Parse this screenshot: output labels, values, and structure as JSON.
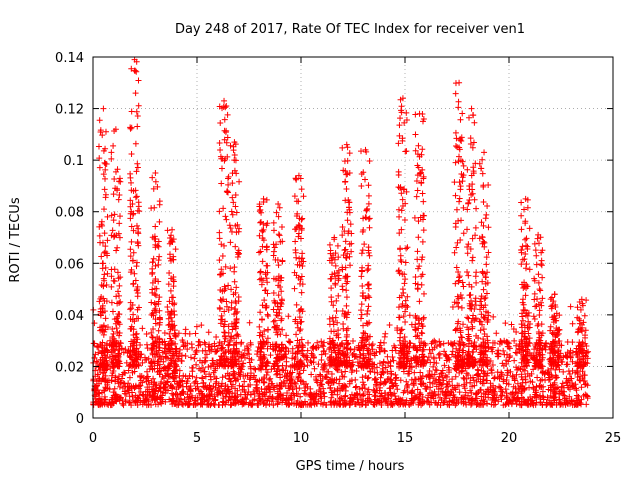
{
  "chart_data": {
    "type": "scatter",
    "title": "Day 248 of 2017, Rate Of TEC Index for receiver ven1",
    "xlabel": "GPS time / hours",
    "ylabel": "ROTI / TECUs",
    "xlim": [
      0,
      25
    ],
    "ylim": [
      0,
      0.14
    ],
    "xticks": [
      "0",
      "5",
      "10",
      "15",
      "20",
      "25"
    ],
    "yticks": [
      "0",
      "0.02",
      "0.04",
      "0.06",
      "0.08",
      "0.1",
      "0.12",
      "0.14"
    ],
    "grid": true,
    "marker": "plus",
    "color": "#ff0000",
    "data_extent_hours": [
      0,
      23.8
    ],
    "baseline_range": [
      0.005,
      0.03
    ],
    "bursts": [
      {
        "x": 0.5,
        "peak": 0.12
      },
      {
        "x": 1.1,
        "peak": 0.112
      },
      {
        "x": 2.0,
        "peak": 0.139
      },
      {
        "x": 3.0,
        "peak": 0.095
      },
      {
        "x": 3.8,
        "peak": 0.073
      },
      {
        "x": 6.3,
        "peak": 0.123
      },
      {
        "x": 6.8,
        "peak": 0.107
      },
      {
        "x": 8.2,
        "peak": 0.085
      },
      {
        "x": 8.9,
        "peak": 0.083
      },
      {
        "x": 9.9,
        "peak": 0.094
      },
      {
        "x": 11.6,
        "peak": 0.07
      },
      {
        "x": 12.2,
        "peak": 0.106
      },
      {
        "x": 13.1,
        "peak": 0.104
      },
      {
        "x": 14.9,
        "peak": 0.124
      },
      {
        "x": 15.7,
        "peak": 0.118
      },
      {
        "x": 17.6,
        "peak": 0.13
      },
      {
        "x": 18.2,
        "peak": 0.12
      },
      {
        "x": 18.8,
        "peak": 0.103
      },
      {
        "x": 20.8,
        "peak": 0.085
      },
      {
        "x": 21.4,
        "peak": 0.071
      },
      {
        "x": 22.2,
        "peak": 0.048
      },
      {
        "x": 23.5,
        "peak": 0.046
      }
    ]
  }
}
